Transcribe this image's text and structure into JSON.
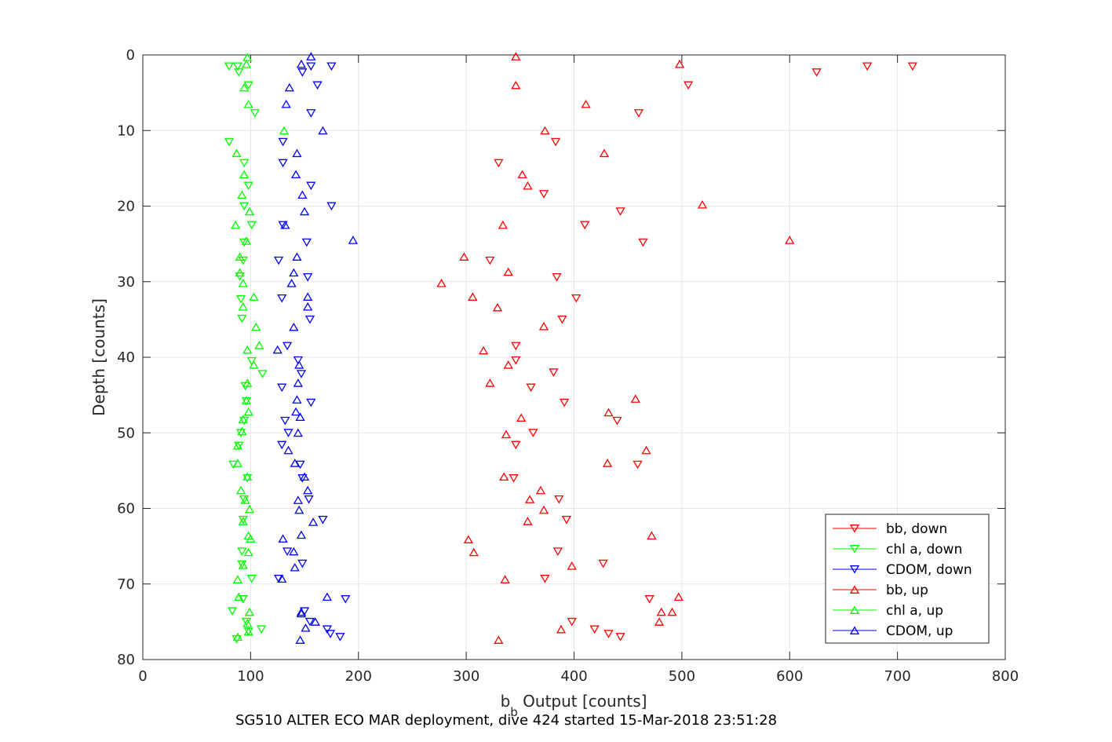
{
  "chart_data": {
    "type": "scatter",
    "xlabel_main": "b",
    "xlabel_sub": "b",
    "xlabel_rest": " Output [counts]",
    "ylabel": "Depth [counts]",
    "caption": "SG510 ALTER ECO MAR deployment, dive 424 started 15-Mar-2018 23:51:28",
    "xlim": [
      0,
      800
    ],
    "ylim": [
      0,
      80
    ],
    "y_reversed": true,
    "grid": true,
    "legend_position": "bottom-right",
    "x_ticks": [
      0,
      100,
      200,
      300,
      400,
      500,
      600,
      700,
      800
    ],
    "y_ticks": [
      0,
      10,
      20,
      30,
      40,
      50,
      60,
      70,
      80
    ],
    "series": [
      {
        "name": "bb, down",
        "color": "#ff0000",
        "marker": "triangle-down",
        "points": [
          [
            714,
            1.5
          ],
          [
            672,
            1.5
          ],
          [
            625,
            2.3
          ],
          [
            506,
            4
          ],
          [
            460,
            7.7
          ],
          [
            383,
            11.5
          ],
          [
            330,
            14.3
          ],
          [
            372,
            18.4
          ],
          [
            443,
            20.7
          ],
          [
            410,
            22.5
          ],
          [
            464,
            24.8
          ],
          [
            322,
            27.2
          ],
          [
            384,
            29.4
          ],
          [
            402,
            32.2
          ],
          [
            389,
            35
          ],
          [
            346,
            38.5
          ],
          [
            346,
            40.4
          ],
          [
            381,
            42
          ],
          [
            360,
            44
          ],
          [
            391,
            46
          ],
          [
            440,
            48.4
          ],
          [
            362,
            50
          ],
          [
            346,
            51.6
          ],
          [
            459,
            54.2
          ],
          [
            344,
            56
          ],
          [
            386,
            58.8
          ],
          [
            393,
            61.5
          ],
          [
            385,
            65.7
          ],
          [
            427,
            67.3
          ],
          [
            373,
            69.3
          ],
          [
            470,
            72
          ],
          [
            398,
            75
          ],
          [
            419,
            76
          ],
          [
            432,
            76.6
          ],
          [
            443,
            77
          ]
        ]
      },
      {
        "name": "chl a, down",
        "color": "#00ff00",
        "marker": "triangle-down",
        "points": [
          [
            80,
            1.5
          ],
          [
            88,
            1.5
          ],
          [
            89,
            2.3
          ],
          [
            98,
            4
          ],
          [
            104,
            7.7
          ],
          [
            80,
            11.5
          ],
          [
            94,
            14.3
          ],
          [
            98,
            17.3
          ],
          [
            94,
            20
          ],
          [
            101,
            22.5
          ],
          [
            94,
            24.8
          ],
          [
            93,
            27.2
          ],
          [
            90,
            29.3
          ],
          [
            91,
            32.3
          ],
          [
            92,
            34.9
          ],
          [
            101,
            40.5
          ],
          [
            111,
            42.2
          ],
          [
            95,
            43.8
          ],
          [
            96,
            45.8
          ],
          [
            94,
            48.4
          ],
          [
            91,
            50
          ],
          [
            89,
            51.7
          ],
          [
            84,
            54.2
          ],
          [
            97,
            56
          ],
          [
            94,
            58.8
          ],
          [
            93,
            61.5
          ],
          [
            92,
            65.7
          ],
          [
            92,
            67.4
          ],
          [
            101,
            69.3
          ],
          [
            93,
            72
          ],
          [
            83,
            73.6
          ],
          [
            96,
            75
          ],
          [
            110,
            76
          ],
          [
            98,
            76.3
          ],
          [
            87,
            77.3
          ]
        ]
      },
      {
        "name": "CDOM, down",
        "color": "#0000ff",
        "marker": "triangle-down",
        "points": [
          [
            175,
            1.5
          ],
          [
            156,
            1.5
          ],
          [
            148,
            2.3
          ],
          [
            162,
            4
          ],
          [
            156,
            7.7
          ],
          [
            130,
            11.5
          ],
          [
            130,
            14.3
          ],
          [
            156,
            17.3
          ],
          [
            175,
            20
          ],
          [
            130,
            22.5
          ],
          [
            152,
            24.8
          ],
          [
            126,
            27.2
          ],
          [
            153,
            29.4
          ],
          [
            129,
            32.2
          ],
          [
            155,
            35
          ],
          [
            134,
            38.5
          ],
          [
            144,
            40.4
          ],
          [
            147,
            42.2
          ],
          [
            129,
            44
          ],
          [
            156,
            46
          ],
          [
            132,
            48.4
          ],
          [
            135,
            50
          ],
          [
            129,
            51.6
          ],
          [
            146,
            54.2
          ],
          [
            148,
            56
          ],
          [
            154,
            58.8
          ],
          [
            167,
            61.5
          ],
          [
            134,
            65.7
          ],
          [
            148,
            67.3
          ],
          [
            126,
            69.3
          ],
          [
            188,
            72
          ],
          [
            150,
            73.6
          ],
          [
            155,
            75
          ],
          [
            171,
            76
          ],
          [
            174,
            76.6
          ],
          [
            183,
            77
          ]
        ]
      },
      {
        "name": "bb, up",
        "color": "#ff0000",
        "marker": "triangle-up",
        "points": [
          [
            346,
            0.2
          ],
          [
            498,
            1.2
          ],
          [
            346,
            4
          ],
          [
            411,
            6.5
          ],
          [
            373,
            10
          ],
          [
            428,
            13
          ],
          [
            352,
            15.8
          ],
          [
            357,
            17.3
          ],
          [
            519,
            19.8
          ],
          [
            334,
            22.5
          ],
          [
            600,
            24.5
          ],
          [
            298,
            26.7
          ],
          [
            339,
            28.7
          ],
          [
            277,
            30.2
          ],
          [
            306,
            32
          ],
          [
            329,
            33.4
          ],
          [
            372,
            35.9
          ],
          [
            316,
            39.1
          ],
          [
            339,
            41
          ],
          [
            322,
            43.4
          ],
          [
            457,
            45.5
          ],
          [
            432,
            47.3
          ],
          [
            351,
            48
          ],
          [
            337,
            50.2
          ],
          [
            467,
            52.3
          ],
          [
            431,
            54
          ],
          [
            335,
            55.8
          ],
          [
            369,
            57.6
          ],
          [
            359,
            58.8
          ],
          [
            372,
            60.2
          ],
          [
            357,
            61.7
          ],
          [
            472,
            63.6
          ],
          [
            302,
            64.1
          ],
          [
            307,
            65.8
          ],
          [
            398,
            67.6
          ],
          [
            336,
            69.4
          ],
          [
            497,
            71.7
          ],
          [
            481,
            73.7
          ],
          [
            491,
            73.7
          ],
          [
            479,
            75
          ],
          [
            388,
            76
          ],
          [
            330,
            77.4
          ]
        ]
      },
      {
        "name": "chl a, up",
        "color": "#00ff00",
        "marker": "triangle-up",
        "points": [
          [
            97,
            0.3
          ],
          [
            96,
            1.2
          ],
          [
            94,
            4.3
          ],
          [
            98,
            6.5
          ],
          [
            131,
            10
          ],
          [
            87,
            13
          ],
          [
            94,
            15.8
          ],
          [
            92,
            18.5
          ],
          [
            99,
            20.7
          ],
          [
            86,
            22.5
          ],
          [
            96,
            24.6
          ],
          [
            90,
            26.7
          ],
          [
            90,
            28.8
          ],
          [
            93,
            30.2
          ],
          [
            103,
            32
          ],
          [
            93,
            33.3
          ],
          [
            105,
            36
          ],
          [
            108,
            38.4
          ],
          [
            97,
            39
          ],
          [
            103,
            41
          ],
          [
            97,
            43.4
          ],
          [
            96,
            45.7
          ],
          [
            98,
            47.2
          ],
          [
            93,
            48.2
          ],
          [
            92,
            49.8
          ],
          [
            88,
            51.7
          ],
          [
            88,
            54
          ],
          [
            97,
            55.8
          ],
          [
            91,
            57.6
          ],
          [
            95,
            58.9
          ],
          [
            99,
            60.1
          ],
          [
            93,
            61.7
          ],
          [
            98,
            63.6
          ],
          [
            100,
            64
          ],
          [
            98,
            65.8
          ],
          [
            93,
            67.5
          ],
          [
            88,
            69.4
          ],
          [
            89,
            71.7
          ],
          [
            99,
            73.7
          ],
          [
            97,
            75.2
          ],
          [
            98,
            76.3
          ],
          [
            88,
            77
          ]
        ]
      },
      {
        "name": "CDOM, up",
        "color": "#0000ff",
        "marker": "triangle-up",
        "points": [
          [
            156,
            0.2
          ],
          [
            147,
            1.2
          ],
          [
            136,
            4.3
          ],
          [
            133,
            6.5
          ],
          [
            167,
            10
          ],
          [
            143,
            13
          ],
          [
            142,
            15.8
          ],
          [
            148,
            18.5
          ],
          [
            150,
            20.7
          ],
          [
            132,
            22.5
          ],
          [
            195,
            24.5
          ],
          [
            143,
            26.7
          ],
          [
            140,
            28.8
          ],
          [
            138,
            30.2
          ],
          [
            153,
            32
          ],
          [
            153,
            33.3
          ],
          [
            140,
            36
          ],
          [
            125,
            39
          ],
          [
            145,
            41
          ],
          [
            144,
            43.4
          ],
          [
            143,
            45.6
          ],
          [
            142,
            47.2
          ],
          [
            146,
            47.9
          ],
          [
            144,
            50
          ],
          [
            135,
            52.3
          ],
          [
            141,
            54
          ],
          [
            150,
            55.8
          ],
          [
            153,
            57.6
          ],
          [
            144,
            58.9
          ],
          [
            145,
            60.2
          ],
          [
            158,
            61.8
          ],
          [
            147,
            63.5
          ],
          [
            130,
            64
          ],
          [
            140,
            65.7
          ],
          [
            141,
            67.8
          ],
          [
            129,
            69.3
          ],
          [
            171,
            71.7
          ],
          [
            147,
            73.7
          ],
          [
            160,
            75
          ],
          [
            151,
            75.8
          ],
          [
            147,
            73.9
          ],
          [
            146,
            77.4
          ]
        ]
      }
    ]
  }
}
